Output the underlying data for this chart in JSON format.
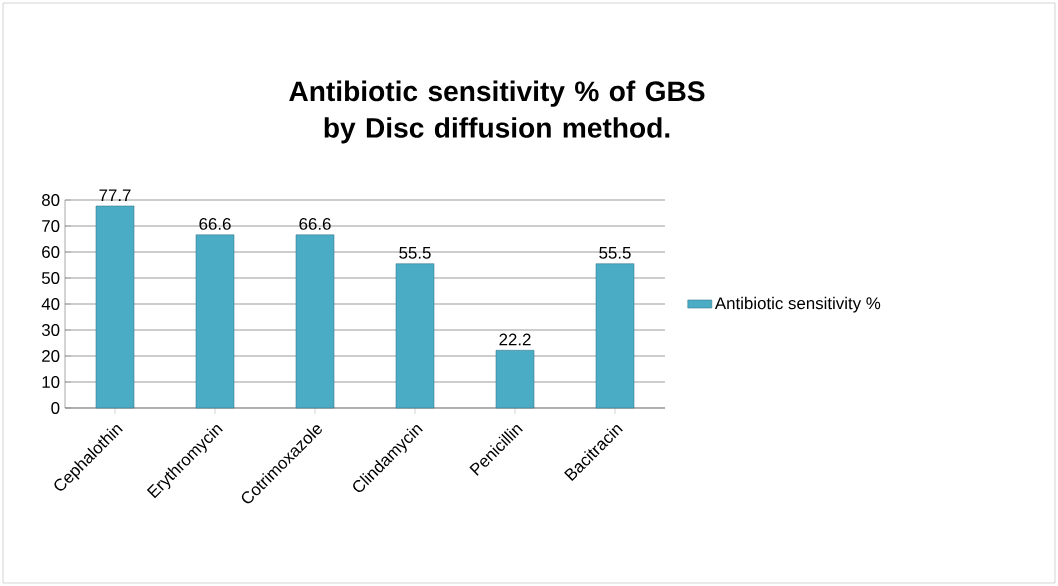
{
  "chart_data": {
    "type": "bar",
    "title": "Antibiotic sensitivity % of GBS by Disc diffusion method.",
    "categories": [
      "Cephalothin",
      "Erythromycin",
      "Cotrimoxazole",
      "Clindamycin",
      "Penicillin",
      "Bacitracin"
    ],
    "series": [
      {
        "name": "Antibiotic sensitivity %",
        "color": "#4bacc6",
        "values": [
          77.7,
          66.6,
          66.6,
          55.5,
          22.2,
          55.5
        ]
      }
    ],
    "ylim": [
      0,
      80
    ],
    "yticks": [
      0,
      10,
      20,
      30,
      40,
      50,
      60,
      70,
      80
    ],
    "grid": "y",
    "legend": "right",
    "data_labels": true
  }
}
